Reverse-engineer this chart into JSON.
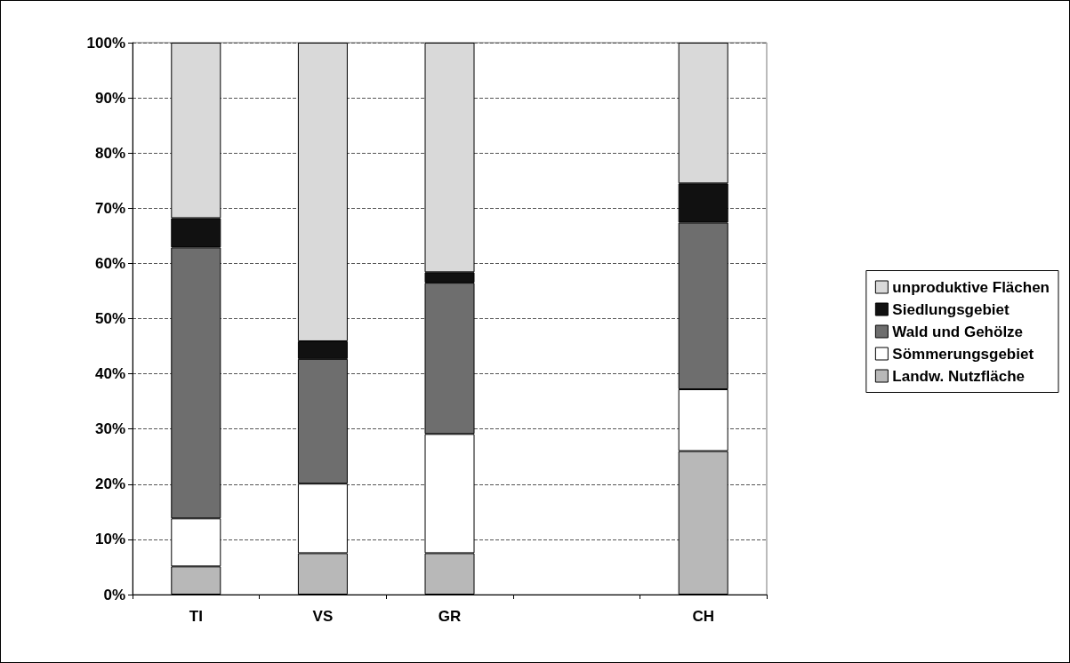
{
  "chart_data": {
    "type": "bar",
    "stacked": true,
    "categories": [
      "TI",
      "VS",
      "GR",
      null,
      "CH"
    ],
    "series": [
      {
        "name": "Landw. Nutzfläche",
        "color": "#b8b8b8",
        "values": [
          5.1,
          7.5,
          7.5,
          null,
          26.0
        ]
      },
      {
        "name": "Sömmerungsgebiet",
        "color": "#ffffff",
        "values": [
          8.7,
          12.6,
          21.6,
          null,
          11.2
        ]
      },
      {
        "name": "Wald und Gehölze",
        "color": "#6e6e6e",
        "values": [
          49.1,
          22.6,
          27.4,
          null,
          30.2
        ]
      },
      {
        "name": "Siedlungsgebiet",
        "color": "#111111",
        "values": [
          5.3,
          3.2,
          1.9,
          null,
          7.1
        ]
      },
      {
        "name": "unproduktive Flächen",
        "color": "#d9d9d9",
        "values": [
          31.8,
          54.1,
          41.6,
          null,
          25.5
        ]
      }
    ],
    "ylim": [
      0,
      100
    ],
    "yticks": [
      {
        "value": 0,
        "label": "0%"
      },
      {
        "value": 10,
        "label": "10%"
      },
      {
        "value": 20,
        "label": "20%"
      },
      {
        "value": 30,
        "label": "30%"
      },
      {
        "value": 40,
        "label": "40%"
      },
      {
        "value": 50,
        "label": "50%"
      },
      {
        "value": 60,
        "label": "60%"
      },
      {
        "value": 70,
        "label": "70%"
      },
      {
        "value": 80,
        "label": "80%"
      },
      {
        "value": 90,
        "label": "90%"
      },
      {
        "value": 100,
        "label": "100%"
      }
    ],
    "grid": "y",
    "legend": "right"
  }
}
